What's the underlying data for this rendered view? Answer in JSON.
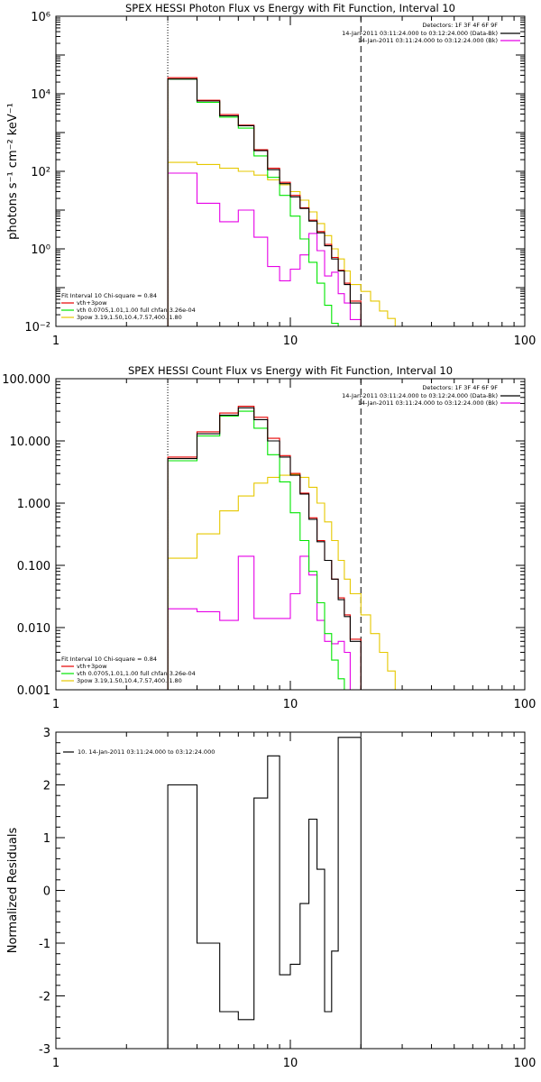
{
  "chart_data": [
    {
      "type": "line",
      "scale": "log-log",
      "title": "SPEX HESSI Photon Flux vs Energy with Fit Function, Interval 10",
      "ylabel": "photons s⁻¹ cm⁻² keV⁻¹",
      "xlim": [
        1,
        100
      ],
      "ylim": [
        0.01,
        1000000
      ],
      "xticks": [
        {
          "v": 1,
          "label": "1"
        },
        {
          "v": 10,
          "label": "10"
        },
        {
          "v": 100,
          "label": "100"
        }
      ],
      "yticks": [
        {
          "v": 0.01,
          "label": "10⁻²"
        },
        {
          "v": 1,
          "label": "10⁰"
        },
        {
          "v": 100,
          "label": "10²"
        },
        {
          "v": 10000,
          "label": "10⁴"
        },
        {
          "v": 1000000,
          "label": "10⁶"
        }
      ],
      "vlines": [
        {
          "x": 3,
          "style": "dotted"
        },
        {
          "x": 20,
          "style": "dashed"
        }
      ],
      "legend_topright": {
        "header": "Detectors: 1F 3F 4F 6F 9F",
        "entries": [
          {
            "text": "14-Jan-2011 03:11:24.000 to 03:12:24.000 (Data-Bk)",
            "color": "#000000"
          },
          {
            "text": "14-Jan-2011 03:11:24.000 to 03:12:24.000 (Bk)",
            "color": "#e600e6"
          }
        ]
      },
      "legend_bottomleft": {
        "header": "Fit Interval 10   Chi-square = 0.84",
        "entries": [
          {
            "text": "vth+3pow",
            "color": "#e60000"
          },
          {
            "text": "vth 0.0705,1.01,1.00  full chfan 3.26e-04",
            "color": "#00e600"
          },
          {
            "text": "3pow 3.19,1.50,10.4,7.57,400.,1.80",
            "color": "#e6c800"
          }
        ]
      },
      "edges": [
        3,
        4,
        5,
        6,
        7,
        8,
        9,
        10,
        11,
        12,
        13,
        14,
        15,
        16,
        17,
        18,
        20,
        22,
        24,
        26,
        28,
        30
      ],
      "series": [
        {
          "name": "Data-Bk",
          "color": "#000000",
          "values": [
            24000,
            6500,
            2700,
            1500,
            340,
            110,
            48,
            22,
            11,
            5.2,
            2.6,
            1.2,
            0.55,
            0.27,
            0.12,
            0.04
          ]
        },
        {
          "name": "vth+3pow",
          "color": "#e60000",
          "values": [
            26000,
            6800,
            2900,
            1550,
            360,
            120,
            52,
            24,
            11.5,
            5.5,
            2.8,
            1.3,
            0.6,
            0.28,
            0.13,
            0.045
          ]
        },
        {
          "name": "vth",
          "color": "#00e600",
          "values": [
            24000,
            6000,
            2500,
            1300,
            250,
            70,
            24,
            7,
            1.8,
            0.45,
            0.13,
            0.035,
            0.012
          ]
        },
        {
          "name": "3pow",
          "color": "#e6c800",
          "values": [
            170,
            150,
            120,
            100,
            80,
            60,
            45,
            30,
            18,
            9,
            4.5,
            2.2,
            1.0,
            0.55,
            0.27,
            0.12,
            0.08,
            0.045,
            0.025,
            0.016,
            0.01
          ]
        },
        {
          "name": "Bk",
          "color": "#e600e6",
          "values": [
            90,
            15,
            5,
            10,
            2,
            0.35,
            0.15,
            0.3,
            0.7,
            2.5,
            0.9,
            0.2,
            0.25,
            0.07,
            0.04,
            0.015
          ]
        }
      ]
    },
    {
      "type": "line",
      "scale": "log-log",
      "title": "SPEX HESSI Count Flux vs Energy with Fit Function, Interval 10",
      "ylabel": "",
      "xlim": [
        1,
        100
      ],
      "ylim": [
        0.001,
        100
      ],
      "xticks": [
        {
          "v": 1,
          "label": "1"
        },
        {
          "v": 10,
          "label": "10"
        },
        {
          "v": 100,
          "label": "100"
        }
      ],
      "yticks": [
        {
          "v": 0.001,
          "label": "0.001"
        },
        {
          "v": 0.01,
          "label": "0.010"
        },
        {
          "v": 0.1,
          "label": "0.100"
        },
        {
          "v": 1,
          "label": "1.000"
        },
        {
          "v": 10,
          "label": "10.000"
        },
        {
          "v": 100,
          "label": "100.000"
        }
      ],
      "vlines": [
        {
          "x": 3,
          "style": "dotted"
        },
        {
          "x": 20,
          "style": "dashed"
        }
      ],
      "legend_topright": {
        "header": "Detectors: 1F 3F 4F 6F 9F",
        "entries": [
          {
            "text": "14-Jan-2011 03:11:24.000 to 03:12:24.000 (Data-Bk)",
            "color": "#000000"
          },
          {
            "text": "14-Jan-2011 03:11:24.000 to 03:12:24.000 (Bk)",
            "color": "#e600e6"
          }
        ]
      },
      "legend_bottomleft": {
        "header": "Fit Interval 10   Chi-square = 0.84",
        "entries": [
          {
            "text": "vth+3pow",
            "color": "#e60000"
          },
          {
            "text": "vth 0.0705,1.01,1.00  full chfan 3.26e-04",
            "color": "#00e600"
          },
          {
            "text": "3pow 3.19,1.50,10.4,7.57,400.,1.80",
            "color": "#e6c800"
          }
        ]
      },
      "edges": [
        3,
        4,
        5,
        6,
        7,
        8,
        9,
        10,
        11,
        12,
        13,
        14,
        15,
        16,
        17,
        18,
        20,
        22,
        24,
        26,
        28,
        30
      ],
      "series": [
        {
          "name": "Data-Bk",
          "color": "#000000",
          "values": [
            5.2,
            13,
            26,
            34,
            22,
            10,
            5.5,
            2.8,
            1.4,
            0.55,
            0.24,
            0.12,
            0.06,
            0.028,
            0.015,
            0.006
          ]
        },
        {
          "name": "vth+3pow",
          "color": "#e60000",
          "values": [
            5.5,
            14,
            28,
            36,
            24,
            11,
            5.8,
            3.0,
            1.45,
            0.58,
            0.25,
            0.12,
            0.06,
            0.03,
            0.016,
            0.0065
          ]
        },
        {
          "name": "vth",
          "color": "#00e600",
          "values": [
            4.8,
            12,
            25,
            30,
            16,
            6,
            2.2,
            0.7,
            0.25,
            0.08,
            0.025,
            0.008,
            0.003,
            0.0015,
            0.001
          ]
        },
        {
          "name": "3pow",
          "color": "#e6c800",
          "values": [
            0.13,
            0.32,
            0.75,
            1.3,
            2.1,
            2.6,
            2.8,
            2.9,
            2.6,
            1.8,
            1.0,
            0.5,
            0.25,
            0.12,
            0.06,
            0.035,
            0.016,
            0.008,
            0.004,
            0.002,
            0.001
          ]
        },
        {
          "name": "Bk",
          "color": "#e600e6",
          "values": [
            0.02,
            0.018,
            0.013,
            0.14,
            0.014,
            0.014,
            0.014,
            0.035,
            0.14,
            0.07,
            0.013,
            0.006,
            0.0055,
            0.006,
            0.004,
            0.001
          ]
        }
      ]
    },
    {
      "type": "line",
      "scale": "log-linear",
      "title": "",
      "ylabel": "Normalized Residuals",
      "xlim": [
        1,
        100
      ],
      "ylim": [
        -3,
        3
      ],
      "xticks": [
        {
          "v": 1,
          "label": "1"
        },
        {
          "v": 10,
          "label": "10"
        },
        {
          "v": 100,
          "label": "100"
        }
      ],
      "yticks": [
        {
          "v": -3,
          "label": "-3"
        },
        {
          "v": -2,
          "label": "-2"
        },
        {
          "v": -1,
          "label": "-1"
        },
        {
          "v": 0,
          "label": "0"
        },
        {
          "v": 1,
          "label": "1"
        },
        {
          "v": 2,
          "label": "2"
        },
        {
          "v": 3,
          "label": "3"
        }
      ],
      "legend": {
        "entries": [
          {
            "text": "10. 14-Jan-2011 03:11:24.000 to 03:12:24.000",
            "color": "#000000"
          }
        ]
      },
      "edges": [
        3,
        4,
        5,
        6,
        7,
        8,
        9,
        10,
        11,
        12,
        13,
        14,
        15,
        16,
        17,
        18,
        20
      ],
      "series": [
        {
          "name": "",
          "color": "#000000",
          "values": [
            2.0,
            -1.0,
            -2.3,
            -2.45,
            1.75,
            2.55,
            -1.6,
            -1.4,
            -0.25,
            1.35,
            0.4,
            -2.3,
            -1.15,
            2.9,
            2.9,
            2.9
          ]
        }
      ]
    }
  ]
}
